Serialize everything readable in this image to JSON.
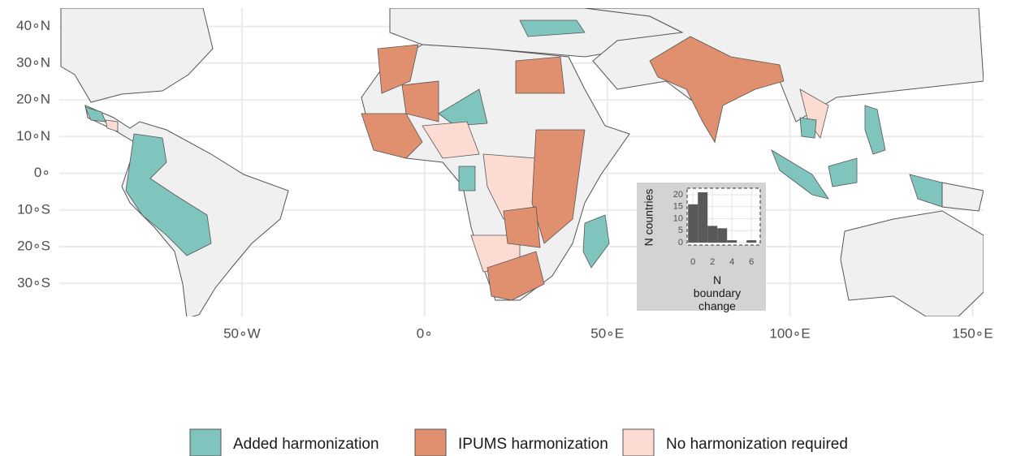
{
  "map": {
    "xlim": [
      -100,
      153
    ],
    "ylim": [
      -39,
      45
    ],
    "xticks": [
      {
        "value": -50,
        "label": "50∘W"
      },
      {
        "value": 0,
        "label": "0∘"
      },
      {
        "value": 50,
        "label": "50∘E"
      },
      {
        "value": 100,
        "label": "100∘E"
      },
      {
        "value": 150,
        "label": "150∘E"
      }
    ],
    "yticks": [
      {
        "value": 40,
        "label": "40∘N"
      },
      {
        "value": 30,
        "label": "30∘N"
      },
      {
        "value": 20,
        "label": "20∘N"
      },
      {
        "value": 10,
        "label": "10∘N"
      },
      {
        "value": 0,
        "label": "0∘"
      },
      {
        "value": -10,
        "label": "10∘S"
      },
      {
        "value": -20,
        "label": "20∘S"
      },
      {
        "value": -30,
        "label": "30∘S"
      }
    ],
    "legend": [
      {
        "name": "Added harmonization",
        "color": "#7fc4bd"
      },
      {
        "name": "IPUMS harmonization",
        "color": "#e0906e"
      },
      {
        "name": "No harmonization required",
        "color": "#fcdcd2"
      }
    ]
  },
  "chart_data": {
    "type": "histogram",
    "xlabel": "N boundary change",
    "ylabel": "N countries",
    "bins": [
      -0.5,
      0.5,
      1.5,
      2.5,
      3.5,
      4.5,
      5.5,
      6.5
    ],
    "values": [
      16,
      21,
      7,
      6,
      1,
      0,
      1
    ],
    "color": "#595959",
    "xlim": [
      -0.6,
      6.9
    ],
    "ylim": [
      -1,
      22.7
    ],
    "xticks": [
      0,
      2,
      4,
      6
    ],
    "yticks": [
      0,
      5,
      10,
      15,
      20
    ],
    "grid": true
  }
}
